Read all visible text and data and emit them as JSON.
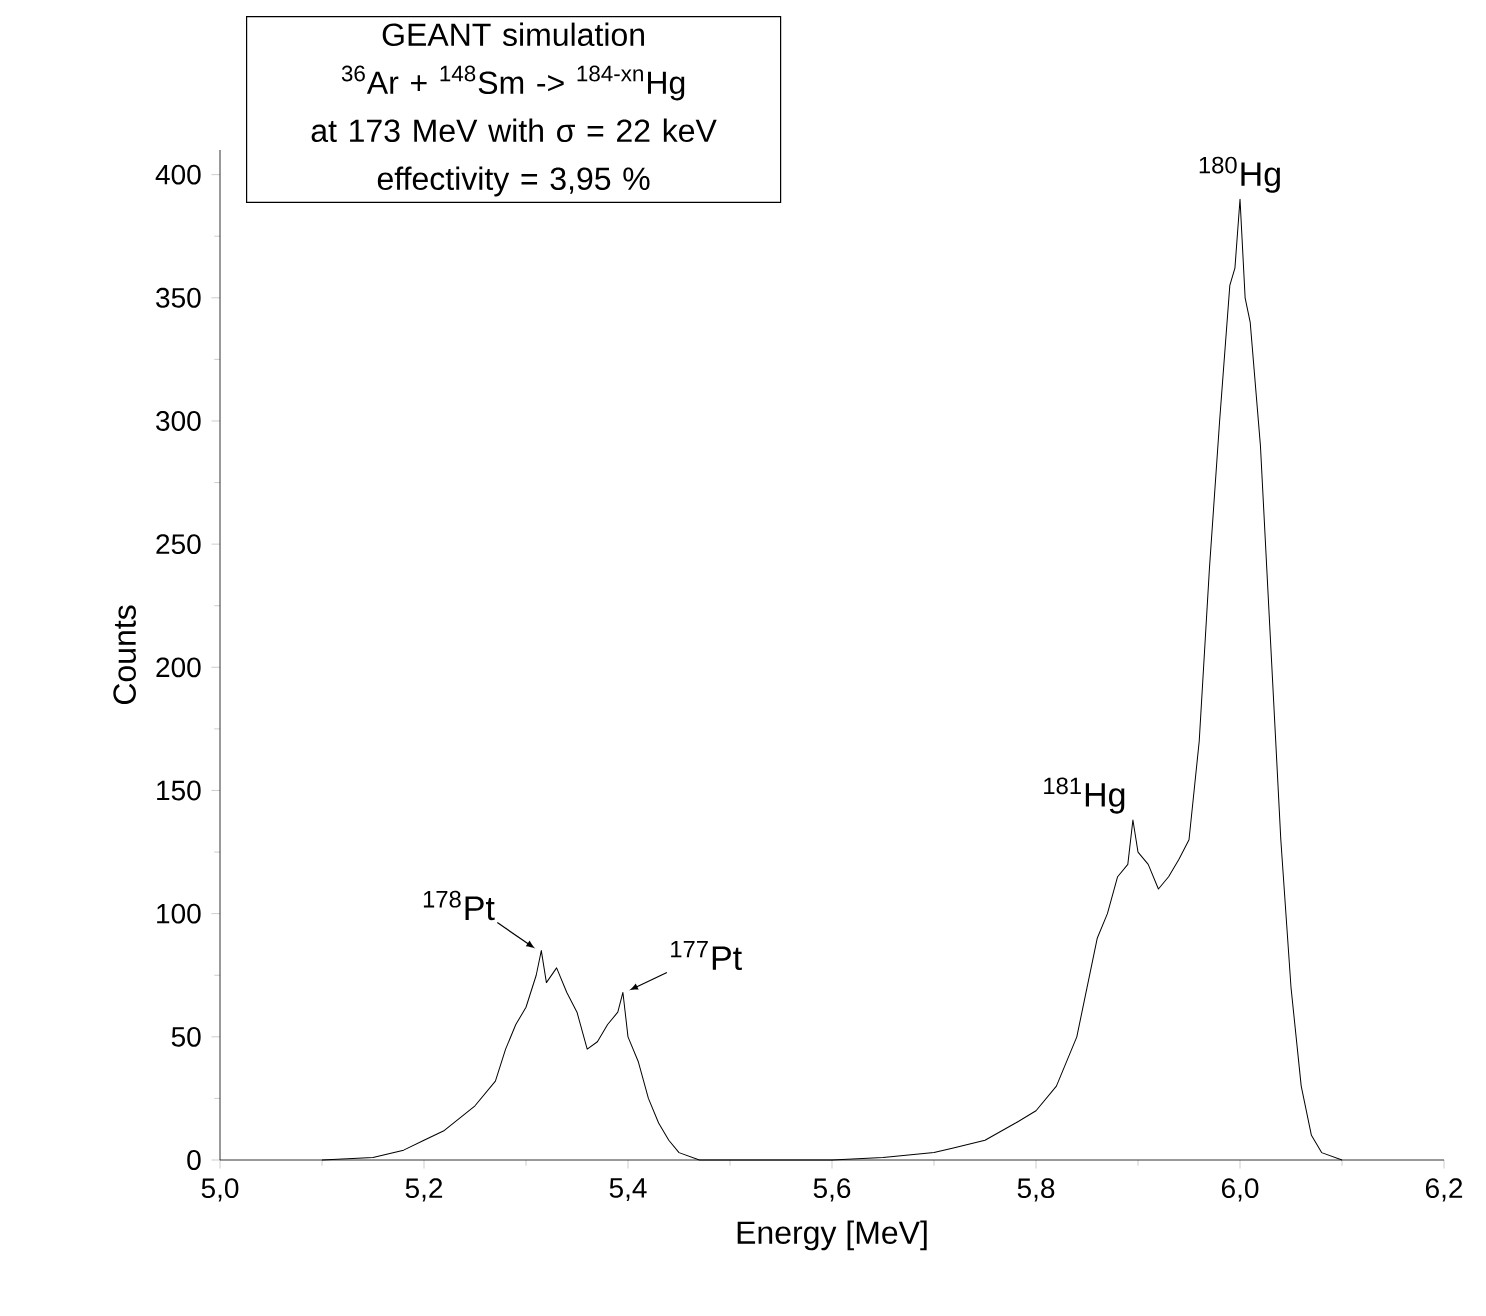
{
  "chart_data": {
    "type": "line",
    "xlabel": "Energy [MeV]",
    "ylabel": "Counts",
    "annotations": [
      "GEANT simulation",
      "$^{36}$Ar + $^{148}$Sm -> $^{184-xn}$Hg",
      "at 173 MeV with σ = 22 keV",
      "effectivity = 3,95 %",
      {
        "text": "$^{178}$Pt",
        "x": 5.315,
        "y": 85
      },
      {
        "text": "$^{177}$Pt",
        "x": 5.395,
        "y": 68
      },
      {
        "text": "$^{181}$Hg",
        "x": 5.895,
        "y": 138
      },
      {
        "text": "$^{180}$Hg",
        "x": 6.0,
        "y": 390
      }
    ],
    "series": [
      {
        "color": "#000000",
        "x": [
          5.1,
          5.15,
          5.18,
          5.2,
          5.22,
          5.25,
          5.27,
          5.28,
          5.29,
          5.3,
          5.31,
          5.315,
          5.32,
          5.33,
          5.34,
          5.35,
          5.36,
          5.37,
          5.38,
          5.39,
          5.395,
          5.4,
          5.41,
          5.42,
          5.43,
          5.44,
          5.45,
          5.47,
          5.6,
          5.65,
          5.7,
          5.72,
          5.75,
          5.78,
          5.8,
          5.82,
          5.84,
          5.85,
          5.86,
          5.87,
          5.88,
          5.89,
          5.895,
          5.9,
          5.91,
          5.92,
          5.93,
          5.94,
          5.95,
          5.96,
          5.97,
          5.98,
          5.99,
          5.995,
          6.0,
          6.005,
          6.01,
          6.02,
          6.03,
          6.04,
          6.05,
          6.06,
          6.07,
          6.08,
          6.1
        ],
        "values": [
          0,
          1,
          4,
          8,
          12,
          22,
          32,
          45,
          55,
          62,
          75,
          85,
          72,
          78,
          68,
          60,
          45,
          48,
          55,
          60,
          68,
          50,
          40,
          25,
          15,
          8,
          3,
          0,
          0,
          1,
          3,
          5,
          8,
          15,
          20,
          30,
          50,
          70,
          90,
          100,
          115,
          120,
          138,
          125,
          120,
          110,
          115,
          122,
          130,
          170,
          240,
          300,
          355,
          362,
          390,
          350,
          340,
          290,
          210,
          130,
          70,
          30,
          10,
          3,
          0
        ]
      }
    ],
    "xlim": [
      5.0,
      6.2
    ],
    "ylim": [
      0,
      410
    ],
    "xticks": [
      {
        "value": 5.0,
        "label": "5,0"
      },
      {
        "value": 5.2,
        "label": "5,2"
      },
      {
        "value": 5.4,
        "label": "5,4"
      },
      {
        "value": 5.6,
        "label": "5,6"
      },
      {
        "value": 5.8,
        "label": "5,8"
      },
      {
        "value": 6.0,
        "label": "6,0"
      },
      {
        "value": 6.2,
        "label": "6,2"
      }
    ],
    "yticks": [
      0,
      50,
      100,
      150,
      200,
      250,
      300,
      350,
      400
    ],
    "marker": "none",
    "line_style": "solid"
  }
}
